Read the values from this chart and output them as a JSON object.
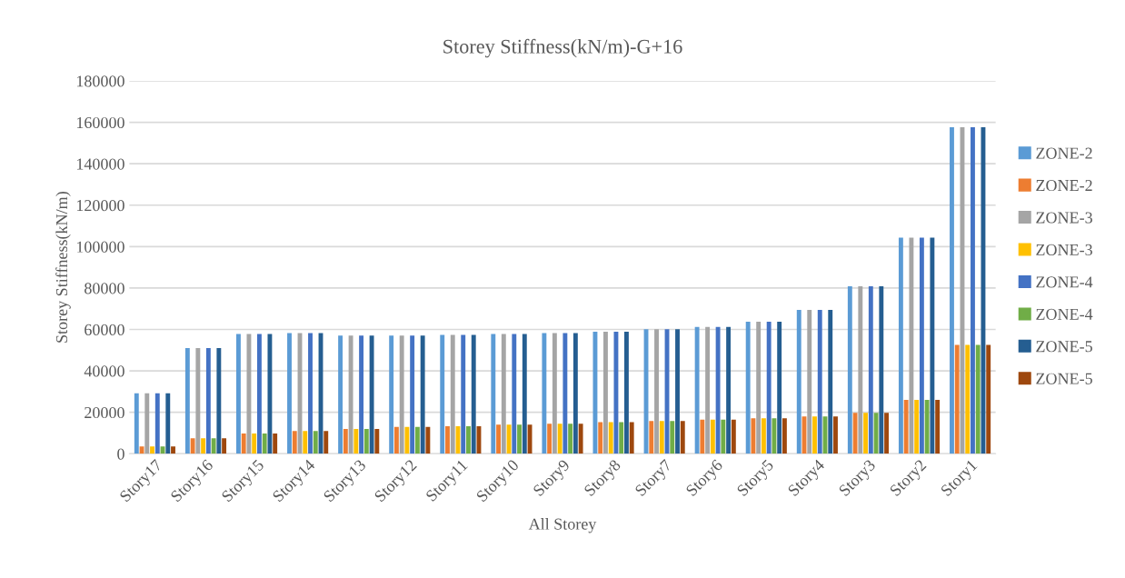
{
  "chart_data": {
    "type": "bar",
    "title": "Storey Stiffness(kN/m)-G+16",
    "xlabel": "All Storey",
    "ylabel": "Storey Stiffness(kN/m)",
    "categories": [
      "Story17",
      "Story16",
      "Story15",
      "Story14",
      "Story13",
      "Story12",
      "Story11",
      "Story10",
      "Story9",
      "Story8",
      "Story7",
      "Story6",
      "Story5",
      "Story4",
      "Story3",
      "Story2",
      "Story1"
    ],
    "series": [
      {
        "name": "ZONE-2",
        "color": "#5b9bd5",
        "values": [
          29200,
          51000,
          57800,
          58200,
          57000,
          57000,
          57400,
          57800,
          58300,
          58900,
          60100,
          61200,
          63700,
          69400,
          80800,
          104300,
          157600
        ]
      },
      {
        "name": "ZONE-2",
        "color": "#ed7d31",
        "values": [
          3500,
          7500,
          9800,
          11000,
          12000,
          13000,
          13300,
          14000,
          14500,
          15300,
          15800,
          16500,
          17100,
          18000,
          19700,
          26000,
          52500
        ]
      },
      {
        "name": "ZONE-3",
        "color": "#a5a5a5",
        "values": [
          29200,
          51000,
          57800,
          58200,
          57000,
          57000,
          57400,
          57800,
          58300,
          58900,
          60100,
          61200,
          63700,
          69400,
          80800,
          104300,
          157600
        ]
      },
      {
        "name": "ZONE-3",
        "color": "#ffc000",
        "values": [
          3500,
          7500,
          9800,
          11000,
          12000,
          13000,
          13300,
          14000,
          14500,
          15300,
          15800,
          16500,
          17100,
          18000,
          19700,
          26000,
          52500
        ]
      },
      {
        "name": "ZONE-4",
        "color": "#4472c4",
        "values": [
          29200,
          51000,
          57800,
          58200,
          57000,
          57000,
          57400,
          57800,
          58300,
          58900,
          60100,
          61200,
          63700,
          69400,
          80800,
          104300,
          157600
        ]
      },
      {
        "name": "ZONE-4",
        "color": "#70ad47",
        "values": [
          3500,
          7500,
          9800,
          11000,
          12000,
          13000,
          13300,
          14000,
          14500,
          15300,
          15800,
          16500,
          17100,
          18000,
          19700,
          26000,
          52500
        ]
      },
      {
        "name": "ZONE-5",
        "color": "#255e91",
        "values": [
          29200,
          51000,
          57800,
          58200,
          57000,
          57000,
          57400,
          57800,
          58300,
          58900,
          60100,
          61200,
          63700,
          69400,
          80800,
          104300,
          157600
        ]
      },
      {
        "name": "ZONE-5",
        "color": "#9e480e",
        "values": [
          3500,
          7500,
          9800,
          11000,
          12000,
          13000,
          13300,
          14000,
          14500,
          15300,
          15800,
          16500,
          17100,
          18000,
          19700,
          26000,
          52500
        ]
      }
    ],
    "ylim": [
      0,
      180000
    ],
    "yticks": [
      0,
      20000,
      40000,
      60000,
      80000,
      100000,
      120000,
      140000,
      160000,
      180000
    ],
    "grid": "y",
    "legend": "right"
  }
}
